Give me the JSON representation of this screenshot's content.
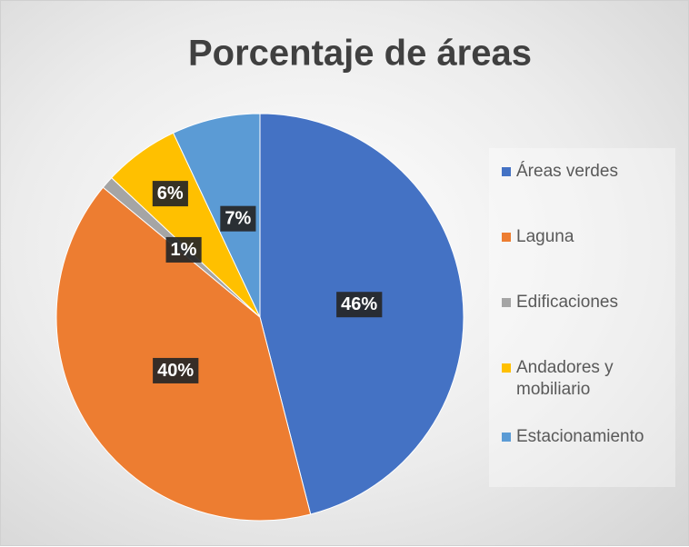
{
  "chart_data": {
    "type": "pie",
    "title": "Porcentaje de áreas",
    "categories": [
      "Áreas verdes",
      "Laguna",
      "Edificaciones",
      "Andadores y mobiliario",
      "Estacionamiento"
    ],
    "values": [
      46,
      40,
      1,
      6,
      7
    ],
    "value_labels": [
      "46%",
      "40%",
      "1%",
      "6%",
      "7%"
    ],
    "colors": [
      "#4472c4",
      "#ed7d31",
      "#a5a5a5",
      "#ffc000",
      "#5b9bd5"
    ],
    "legend": "right"
  }
}
